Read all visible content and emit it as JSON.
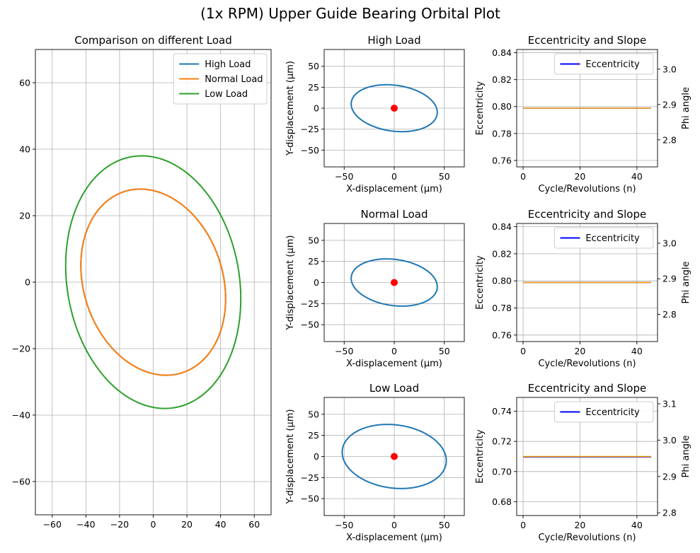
{
  "figure": {
    "title": "(1x RPM) Upper Guide Bearing Orbital Plot"
  },
  "chart_data": [
    {
      "id": "comparison",
      "type": "line",
      "title": "Comparison on different Load",
      "xlabel": "",
      "ylabel": "",
      "xlim": [
        -70,
        70
      ],
      "ylim": [
        -70,
        70
      ],
      "xticks": [
        -60,
        -40,
        -20,
        0,
        20,
        40,
        60
      ],
      "yticks": [
        -60,
        -40,
        -20,
        0,
        20,
        40,
        60
      ],
      "grid": true,
      "legend": "top-right",
      "series": [
        {
          "name": "High Load",
          "color": "#1f77b4",
          "kind": "ellipse",
          "center": [
            0,
            0
          ],
          "x_extent": 43,
          "y_extent": 28,
          "y_at_x_min": 5,
          "x_at_y_max": -10
        },
        {
          "name": "Normal Load",
          "color": "#ff7f0e",
          "kind": "ellipse",
          "center": [
            0,
            0
          ],
          "x_extent": 43,
          "y_extent": 28,
          "y_at_x_min": 5,
          "x_at_y_max": -10
        },
        {
          "name": "Low Load",
          "color": "#2ca02c",
          "kind": "ellipse",
          "center": [
            0,
            0
          ],
          "x_extent": 52,
          "y_extent": 38,
          "y_at_x_min": 5,
          "x_at_y_max": -7
        }
      ]
    },
    {
      "id": "orbit-high",
      "type": "line",
      "title": "High Load",
      "xlabel": "X-displacement (μm)",
      "ylabel": "Y-displacement (μm)",
      "xlim": [
        -70,
        70
      ],
      "ylim": [
        -70,
        70
      ],
      "xticks": [
        -50,
        0,
        50
      ],
      "yticks": [
        -50,
        -25,
        0,
        25,
        50
      ],
      "grid": true,
      "series": [
        {
          "name": "",
          "color": "#1f77b4",
          "kind": "ellipse",
          "center": [
            0,
            0
          ],
          "x_extent": 43,
          "y_extent": 28,
          "y_at_x_min": 5,
          "x_at_y_max": -10
        }
      ],
      "points": [
        {
          "x": 0,
          "y": 0,
          "color": "#ff0000"
        }
      ]
    },
    {
      "id": "ecc-high",
      "type": "line",
      "title": "Eccentricity and Slope",
      "xlabel": "Cycle/Revolutions (n)",
      "ylabel": "Eccentricity",
      "ylabel_right": "Phi angle",
      "xlim": [
        -2.25,
        47.25
      ],
      "ylim": [
        0.7552,
        0.8424
      ],
      "ylim_right": [
        2.7235,
        3.0555
      ],
      "xticks": [
        0,
        20,
        40
      ],
      "yticks": [
        0.76,
        0.78,
        0.8,
        0.82,
        0.84
      ],
      "yticks_right": [
        2.8,
        2.9,
        3.0
      ],
      "grid": true,
      "legend": "top-right",
      "series": [
        {
          "name": "Eccentricity",
          "color": "#0000ff",
          "axis": "left",
          "x": [
            0,
            45
          ],
          "y": [
            0.7988,
            0.7988
          ]
        },
        {
          "name": "",
          "color": "#ffa500",
          "axis": "right",
          "x": [
            0,
            45
          ],
          "y": [
            2.8895,
            2.8895
          ]
        }
      ]
    },
    {
      "id": "orbit-normal",
      "type": "line",
      "title": "Normal Load",
      "xlabel": "X-displacement (μm)",
      "ylabel": "Y-displacement (μm)",
      "xlim": [
        -70,
        70
      ],
      "ylim": [
        -70,
        70
      ],
      "xticks": [
        -50,
        0,
        50
      ],
      "yticks": [
        -50,
        -25,
        0,
        25,
        50
      ],
      "grid": true,
      "series": [
        {
          "name": "",
          "color": "#1f77b4",
          "kind": "ellipse",
          "center": [
            0,
            0
          ],
          "x_extent": 43,
          "y_extent": 28,
          "y_at_x_min": 5,
          "x_at_y_max": -10
        }
      ],
      "points": [
        {
          "x": 0,
          "y": 0,
          "color": "#ff0000"
        }
      ]
    },
    {
      "id": "ecc-normal",
      "type": "line",
      "title": "Eccentricity and Slope",
      "xlabel": "Cycle/Revolutions (n)",
      "ylabel": "Eccentricity",
      "ylabel_right": "Phi angle",
      "xlim": [
        -2.25,
        47.25
      ],
      "ylim": [
        0.7552,
        0.8424
      ],
      "ylim_right": [
        2.7235,
        3.0555
      ],
      "xticks": [
        0,
        20,
        40
      ],
      "yticks": [
        0.76,
        0.78,
        0.8,
        0.82,
        0.84
      ],
      "yticks_right": [
        2.8,
        2.9,
        3.0
      ],
      "grid": true,
      "legend": "top-right",
      "series": [
        {
          "name": "Eccentricity",
          "color": "#0000ff",
          "axis": "left",
          "x": [
            0,
            45
          ],
          "y": [
            0.7988,
            0.7988
          ]
        },
        {
          "name": "",
          "color": "#ffa500",
          "axis": "right",
          "x": [
            0,
            45
          ],
          "y": [
            2.8895,
            2.8895
          ]
        }
      ]
    },
    {
      "id": "orbit-low",
      "type": "line",
      "title": "Low Load",
      "xlabel": "X-displacement (μm)",
      "ylabel": "Y-displacement (μm)",
      "xlim": [
        -70,
        70
      ],
      "ylim": [
        -70,
        70
      ],
      "xticks": [
        -50,
        0,
        50
      ],
      "yticks": [
        -50,
        -25,
        0,
        25,
        50
      ],
      "grid": true,
      "series": [
        {
          "name": "",
          "color": "#1f77b4",
          "kind": "ellipse",
          "center": [
            0,
            0
          ],
          "x_extent": 52,
          "y_extent": 38,
          "y_at_x_min": 5,
          "x_at_y_max": -7
        }
      ],
      "points": [
        {
          "x": 0,
          "y": 0,
          "color": "#ff0000"
        }
      ]
    },
    {
      "id": "ecc-low",
      "type": "line",
      "title": "Eccentricity and Slope",
      "xlabel": "Cycle/Revolutions (n)",
      "ylabel": "Eccentricity",
      "ylabel_right": "Phi angle",
      "xlim": [
        -2.25,
        47.25
      ],
      "ylim": [
        0.6708,
        0.7492
      ],
      "ylim_right": [
        2.7925,
        3.1175
      ],
      "xticks": [
        0,
        20,
        40
      ],
      "yticks": [
        0.68,
        0.7,
        0.72,
        0.74
      ],
      "yticks_right": [
        2.8,
        2.9,
        3.0,
        3.1
      ],
      "grid": true,
      "legend": "top-right",
      "series": [
        {
          "name": "Eccentricity",
          "color": "#0000ff",
          "axis": "left",
          "x": [
            0,
            45
          ],
          "y": [
            0.7097,
            0.7097
          ]
        },
        {
          "name": "",
          "color": "#ffa500",
          "axis": "right",
          "x": [
            0,
            45
          ],
          "y": [
            2.9549,
            2.9549
          ]
        }
      ]
    }
  ]
}
